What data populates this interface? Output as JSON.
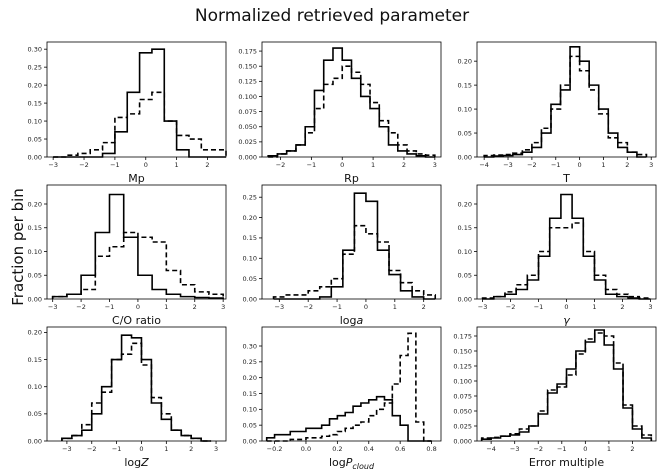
{
  "figure": {
    "title": "Normalized retrieved parameter",
    "ylabel": "Fraction per bin"
  },
  "chart_data": [
    {
      "type": "histogram",
      "xlabel": "Mp",
      "xlim": [
        -3.2,
        2.6
      ],
      "ylim": [
        0,
        0.32
      ],
      "xticks": [
        -3,
        -2,
        -1,
        0,
        1,
        2
      ],
      "yticks": [
        0.0,
        0.05,
        0.1,
        0.15,
        0.2,
        0.25,
        0.3
      ],
      "bin_edges": [
        -3,
        -2.6,
        -2.2,
        -1.8,
        -1.4,
        -1.0,
        -0.6,
        -0.2,
        0.2,
        0.6,
        1.0,
        1.4,
        1.8,
        2.2,
        2.6
      ],
      "series": [
        {
          "style": "solid",
          "values": [
            0.0,
            0.0,
            0.0,
            0.0,
            0.01,
            0.07,
            0.18,
            0.29,
            0.3,
            0.1,
            0.02,
            0.0,
            0.0,
            0.0
          ]
        },
        {
          "style": "dashed",
          "values": [
            0.0,
            0.005,
            0.01,
            0.02,
            0.04,
            0.11,
            0.12,
            0.16,
            0.18,
            0.1,
            0.06,
            0.05,
            0.02,
            0.02
          ]
        }
      ]
    },
    {
      "type": "histogram",
      "xlabel": "Rp",
      "xlim": [
        -2.6,
        3.2
      ],
      "ylim": [
        0,
        0.19
      ],
      "xticks": [
        -2,
        -1,
        0,
        1,
        2,
        3
      ],
      "yticks": [
        0.0,
        0.025,
        0.05,
        0.075,
        0.1,
        0.125,
        0.15,
        0.175
      ],
      "bin_edges": [
        -2.4,
        -2.1,
        -1.8,
        -1.5,
        -1.2,
        -0.9,
        -0.6,
        -0.3,
        0.0,
        0.3,
        0.6,
        0.9,
        1.2,
        1.5,
        1.8,
        2.1,
        2.4,
        2.7,
        3.0
      ],
      "series": [
        {
          "style": "solid",
          "values": [
            0.002,
            0.005,
            0.01,
            0.02,
            0.05,
            0.11,
            0.16,
            0.18,
            0.16,
            0.13,
            0.1,
            0.08,
            0.05,
            0.02,
            0.01,
            0.005,
            0.002,
            0.0
          ]
        },
        {
          "style": "dashed",
          "values": [
            0.0,
            0.005,
            0.01,
            0.02,
            0.04,
            0.08,
            0.12,
            0.13,
            0.15,
            0.14,
            0.12,
            0.09,
            0.06,
            0.04,
            0.02,
            0.01,
            0.005,
            0.003
          ]
        }
      ]
    },
    {
      "type": "histogram",
      "xlabel": "T",
      "xlim": [
        -4.3,
        3.2
      ],
      "ylim": [
        0,
        0.24
      ],
      "xticks": [
        -4,
        -3,
        -2,
        -1,
        0,
        1,
        2,
        3
      ],
      "yticks": [
        0.0,
        0.05,
        0.1,
        0.15,
        0.2
      ],
      "bin_edges": [
        -4,
        -3.6,
        -3.2,
        -2.8,
        -2.4,
        -2.0,
        -1.6,
        -1.2,
        -0.8,
        -0.4,
        0.0,
        0.4,
        0.8,
        1.2,
        1.6,
        2.0,
        2.4,
        2.8
      ],
      "series": [
        {
          "style": "solid",
          "values": [
            0.0,
            0.002,
            0.003,
            0.005,
            0.01,
            0.02,
            0.05,
            0.11,
            0.14,
            0.23,
            0.2,
            0.15,
            0.1,
            0.05,
            0.02,
            0.01,
            0.0
          ]
        },
        {
          "style": "dashed",
          "values": [
            0.003,
            0.004,
            0.005,
            0.008,
            0.015,
            0.03,
            0.06,
            0.1,
            0.15,
            0.21,
            0.18,
            0.14,
            0.09,
            0.04,
            0.03,
            0.01,
            0.005
          ]
        }
      ]
    },
    {
      "type": "histogram",
      "xlabel": "C/O ratio",
      "xlim": [
        -3.2,
        3.1
      ],
      "ylim": [
        0,
        0.24
      ],
      "xticks": [
        -3,
        -2,
        -1,
        0,
        1,
        2,
        3
      ],
      "yticks": [
        0.0,
        0.05,
        0.1,
        0.15,
        0.2
      ],
      "bin_edges": [
        -3,
        -2.5,
        -2.0,
        -1.5,
        -1.0,
        -0.5,
        0.0,
        0.5,
        1.0,
        1.5,
        2.0,
        2.5,
        3.0
      ],
      "series": [
        {
          "style": "solid",
          "values": [
            0.005,
            0.01,
            0.05,
            0.14,
            0.22,
            0.13,
            0.05,
            0.02,
            0.01,
            0.005,
            0.003,
            0.002
          ]
        },
        {
          "style": "dashed",
          "values": [
            0.005,
            0.01,
            0.02,
            0.09,
            0.11,
            0.14,
            0.13,
            0.12,
            0.06,
            0.03,
            0.015,
            0.01
          ]
        }
      ]
    },
    {
      "type": "histogram",
      "xlabel": "loga",
      "xlim": [
        -3.6,
        2.6
      ],
      "ylim": [
        0,
        0.28
      ],
      "xticks": [
        -3,
        -2,
        -1,
        0,
        1,
        2
      ],
      "yticks": [
        0.0,
        0.05,
        0.1,
        0.15,
        0.2,
        0.25
      ],
      "bin_edges": [
        -3.2,
        -2.8,
        -2.4,
        -2.0,
        -1.6,
        -1.2,
        -0.8,
        -0.4,
        0.0,
        0.4,
        0.8,
        1.2,
        1.6,
        2.0,
        2.4
      ],
      "series": [
        {
          "style": "solid",
          "values": [
            0.0,
            0.0,
            0.0,
            0.0,
            0.005,
            0.03,
            0.12,
            0.26,
            0.24,
            0.12,
            0.06,
            0.02,
            0.005,
            0.0
          ]
        },
        {
          "style": "dashed",
          "values": [
            0.005,
            0.01,
            0.01,
            0.02,
            0.03,
            0.05,
            0.11,
            0.18,
            0.16,
            0.14,
            0.07,
            0.04,
            0.02,
            0.01
          ]
        }
      ]
    },
    {
      "type": "histogram",
      "xlabel": "γ",
      "xlim": [
        -3.2,
        3.2
      ],
      "ylim": [
        0,
        0.24
      ],
      "xticks": [
        -3,
        -2,
        -1,
        0,
        1,
        2,
        3
      ],
      "yticks": [
        0.0,
        0.05,
        0.1,
        0.15,
        0.2
      ],
      "bin_edges": [
        -3,
        -2.6,
        -2.2,
        -1.8,
        -1.4,
        -1.0,
        -0.6,
        -0.2,
        0.2,
        0.6,
        1.0,
        1.4,
        1.8,
        2.2,
        2.6,
        3.0
      ],
      "series": [
        {
          "style": "solid",
          "values": [
            0.0,
            0.005,
            0.01,
            0.02,
            0.04,
            0.09,
            0.17,
            0.22,
            0.17,
            0.09,
            0.04,
            0.01,
            0.005,
            0.002,
            0.0
          ]
        },
        {
          "style": "dashed",
          "values": [
            0.002,
            0.005,
            0.015,
            0.03,
            0.05,
            0.1,
            0.15,
            0.15,
            0.16,
            0.1,
            0.05,
            0.02,
            0.01,
            0.005,
            0.002
          ]
        }
      ]
    },
    {
      "type": "histogram",
      "xlabel": "logZ",
      "xlim": [
        -3.8,
        3.4
      ],
      "ylim": [
        0,
        0.21
      ],
      "xticks": [
        -3,
        -2,
        -1,
        0,
        1,
        2,
        3
      ],
      "yticks": [
        0.0,
        0.05,
        0.1,
        0.15,
        0.2
      ],
      "bin_edges": [
        -3.2,
        -2.8,
        -2.4,
        -2.0,
        -1.6,
        -1.2,
        -0.8,
        -0.4,
        0.0,
        0.4,
        0.8,
        1.2,
        1.6,
        2.0,
        2.4,
        2.8
      ],
      "series": [
        {
          "style": "solid",
          "values": [
            0.005,
            0.01,
            0.02,
            0.05,
            0.1,
            0.15,
            0.195,
            0.19,
            0.15,
            0.07,
            0.04,
            0.02,
            0.01,
            0.005,
            0.0
          ]
        },
        {
          "style": "dashed",
          "values": [
            0.005,
            0.01,
            0.03,
            0.07,
            0.09,
            0.15,
            0.16,
            0.18,
            0.14,
            0.08,
            0.05,
            0.02,
            0.01,
            0.005,
            0.0
          ]
        }
      ]
    },
    {
      "type": "histogram",
      "xlabel": "logP_cloud",
      "xlim": [
        -0.28,
        0.86
      ],
      "ylim": [
        0,
        0.36
      ],
      "xticks": [
        -0.2,
        0.0,
        0.2,
        0.4,
        0.6,
        0.8
      ],
      "yticks": [
        0.0,
        0.05,
        0.1,
        0.15,
        0.2,
        0.25,
        0.3
      ],
      "bin_edges": [
        -0.25,
        -0.2,
        -0.15,
        -0.1,
        -0.05,
        0.0,
        0.05,
        0.1,
        0.15,
        0.2,
        0.25,
        0.3,
        0.35,
        0.4,
        0.45,
        0.5,
        0.55,
        0.6,
        0.65,
        0.7,
        0.75,
        0.8
      ],
      "series": [
        {
          "style": "solid",
          "values": [
            0.01,
            0.02,
            0.02,
            0.03,
            0.03,
            0.04,
            0.04,
            0.05,
            0.07,
            0.08,
            0.09,
            0.11,
            0.12,
            0.13,
            0.14,
            0.13,
            0.08,
            0.05,
            0.0,
            0.0,
            0.0
          ]
        },
        {
          "style": "dashed",
          "values": [
            0.0,
            0.0,
            0.0,
            0.005,
            0.005,
            0.01,
            0.01,
            0.015,
            0.02,
            0.03,
            0.04,
            0.05,
            0.06,
            0.08,
            0.1,
            0.12,
            0.18,
            0.27,
            0.34,
            0.06,
            0.0
          ]
        }
      ]
    },
    {
      "type": "histogram",
      "xlabel": "Error multiple",
      "xlim": [
        -4.6,
        3.0
      ],
      "ylim": [
        0,
        0.19
      ],
      "xticks": [
        -4,
        -3,
        -2,
        -1,
        0,
        1,
        2
      ],
      "yticks": [
        0.0,
        0.025,
        0.05,
        0.075,
        0.1,
        0.125,
        0.15,
        0.175
      ],
      "bin_edges": [
        -4.4,
        -4.0,
        -3.6,
        -3.2,
        -2.8,
        -2.4,
        -2.0,
        -1.6,
        -1.2,
        -0.8,
        -0.4,
        0.0,
        0.4,
        0.8,
        1.2,
        1.6,
        2.0,
        2.4,
        2.8
      ],
      "series": [
        {
          "style": "solid",
          "values": [
            0.003,
            0.005,
            0.008,
            0.01,
            0.015,
            0.025,
            0.045,
            0.08,
            0.095,
            0.12,
            0.15,
            0.165,
            0.185,
            0.16,
            0.12,
            0.055,
            0.02,
            0.005
          ]
        },
        {
          "style": "dashed",
          "values": [
            0.005,
            0.006,
            0.008,
            0.012,
            0.02,
            0.025,
            0.05,
            0.085,
            0.09,
            0.11,
            0.145,
            0.17,
            0.18,
            0.175,
            0.13,
            0.06,
            0.025,
            0.01
          ]
        }
      ]
    }
  ]
}
